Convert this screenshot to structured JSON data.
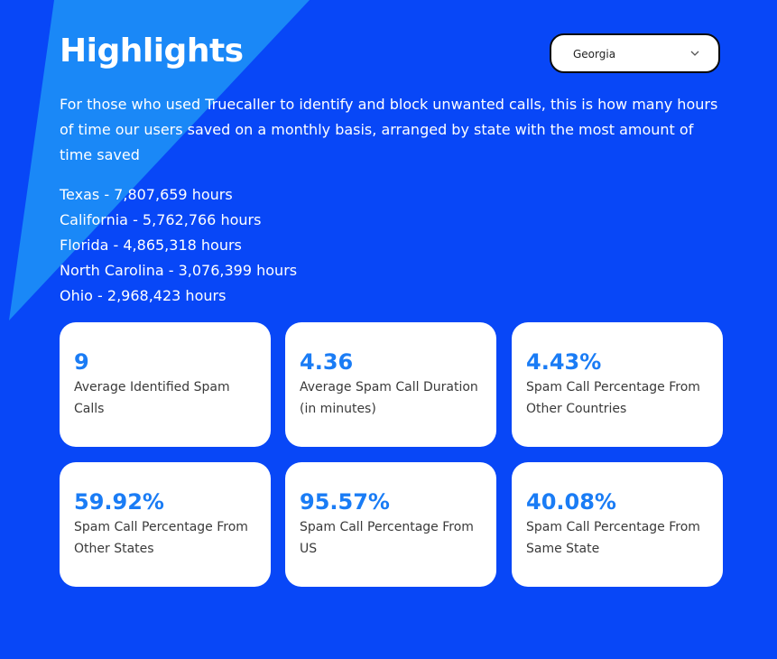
{
  "header": {
    "title": "Highlights",
    "state_select": {
      "selected": "Georgia",
      "icon": "chevron-down-icon"
    }
  },
  "intro": "For those who used Truecaller to identify and block unwanted calls, this is how many hours of time our users saved on a monthly basis, arranged by state with the most amount of time saved",
  "top_states": [
    "Texas - 7,807,659 hours",
    "California - 5,762,766 hours",
    "Florida - 4,865,318 hours",
    "North Carolina - 3,076,399 hours",
    "Ohio - 2,968,423 hours"
  ],
  "stats": [
    {
      "value": "9",
      "label": "Average Identified Spam Calls"
    },
    {
      "value": "4.36",
      "label": "Average Spam Call Duration (in minutes)"
    },
    {
      "value": "4.43%",
      "label": "Spam Call Percentage From Other Countries"
    },
    {
      "value": "59.92%",
      "label": "Spam Call Percentage From Other States"
    },
    {
      "value": "95.57%",
      "label": "Spam Call Percentage From US"
    },
    {
      "value": "40.08%",
      "label": "Spam Call Percentage From Same State"
    }
  ],
  "colors": {
    "background": "#0847f7",
    "accent_shape": "#1a88f7",
    "stat_value": "#1a7cf5",
    "card": "#ffffff"
  }
}
